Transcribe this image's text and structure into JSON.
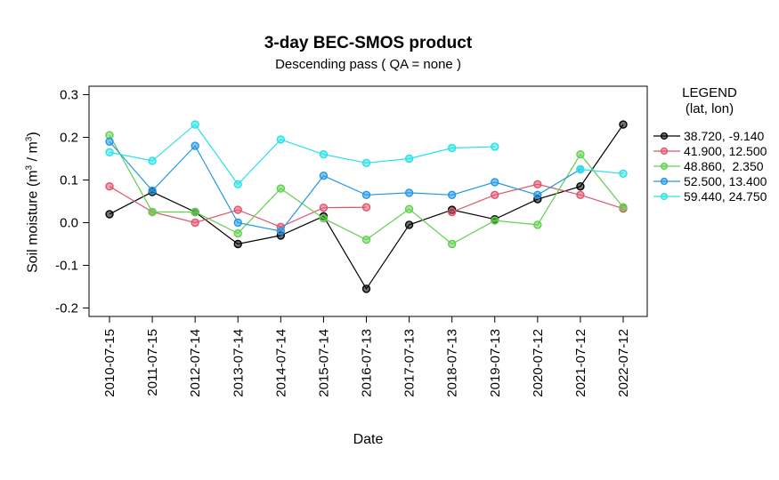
{
  "chart_data": {
    "type": "line",
    "title": "3-day BEC-SMOS product",
    "subtitle": "Descending pass ( QA = none )",
    "xlabel": "Date",
    "ylabel": "Soil moisture (m3 / m3)",
    "ylabel_parts": {
      "pre": "Soil moisture (m",
      "sup1": "3",
      "mid": " / m",
      "sup2": "3",
      "post": ")"
    },
    "legend_title": "LEGEND",
    "legend_subtitle": "(lat, lon)",
    "legend_position": "right-outside",
    "grid": false,
    "ylim": [
      -0.25,
      0.32
    ],
    "y_ticks": [
      0.3,
      0.2,
      0.1,
      0.0,
      -0.1,
      -0.2
    ],
    "categories": [
      "2010-07-15",
      "2011-07-15",
      "2012-07-14",
      "2013-07-14",
      "2014-07-14",
      "2015-07-14",
      "2016-07-13",
      "2017-07-13",
      "2018-07-13",
      "2019-07-13",
      "2020-07-12",
      "2021-07-12",
      "2022-07-12"
    ],
    "series": [
      {
        "name": "38.720, -9.140",
        "color": "#000000",
        "values": [
          0.02,
          0.072,
          0.025,
          -0.05,
          -0.03,
          0.015,
          -0.155,
          -0.005,
          0.03,
          0.008,
          0.055,
          0.085,
          0.23
        ]
      },
      {
        "name": "41.900, 12.500",
        "color": "#DF536B",
        "values": [
          0.085,
          0.025,
          0.0,
          0.03,
          -0.01,
          0.035,
          0.036,
          null,
          0.025,
          0.065,
          0.09,
          0.065,
          0.033
        ]
      },
      {
        "name": "48.860,  2.350",
        "color": "#61D04F",
        "values": [
          0.205,
          0.025,
          0.025,
          -0.025,
          0.08,
          0.01,
          -0.04,
          0.032,
          -0.05,
          0.005,
          -0.005,
          0.16,
          0.036
        ]
      },
      {
        "name": "52.500, 13.400",
        "color": "#2297E6",
        "values": [
          0.19,
          0.075,
          0.18,
          0.0,
          -0.02,
          0.11,
          0.065,
          0.07,
          0.065,
          0.095,
          0.065,
          0.125,
          null
        ]
      },
      {
        "name": "59.440, 24.750",
        "color": "#28E2E5",
        "values": [
          0.165,
          0.145,
          0.23,
          0.09,
          0.195,
          0.16,
          0.14,
          0.15,
          0.175,
          0.178,
          null,
          0.125,
          0.115
        ]
      }
    ]
  }
}
